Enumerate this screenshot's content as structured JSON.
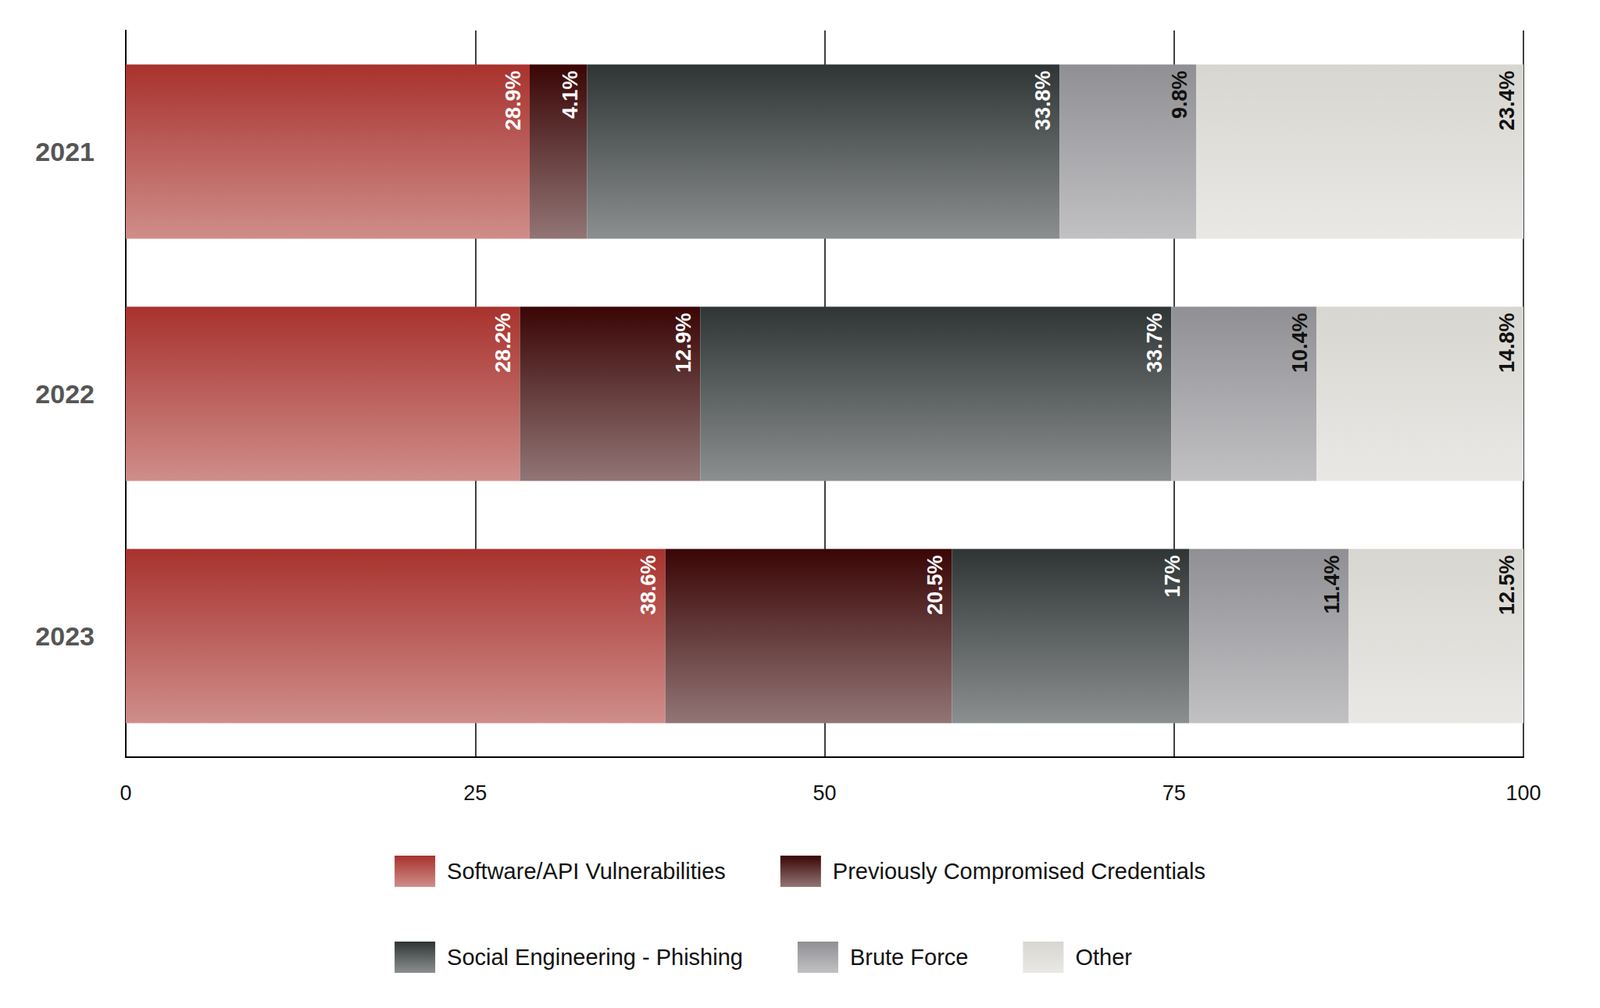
{
  "chart_data": {
    "type": "bar",
    "orientation": "horizontal",
    "stacked": true,
    "data_labels": true,
    "grid": true,
    "legend": "bottom",
    "categories": [
      "2021",
      "2022",
      "2023"
    ],
    "xlim": [
      0,
      100
    ],
    "xticks": [
      0,
      25,
      50,
      75,
      100
    ],
    "series": [
      {
        "name": "Software/API Vulnerabilities",
        "color": "#a8322d",
        "values": [
          28.9,
          28.2,
          38.6
        ],
        "value_labels": [
          "28.9%",
          "28.2%",
          "38.6%"
        ]
      },
      {
        "name": "Previously Compromised Credentials",
        "color": "#3a0505",
        "values": [
          4.1,
          12.9,
          20.5
        ],
        "value_labels": [
          "4.1%",
          "12.9%",
          "20.5%"
        ]
      },
      {
        "name": "Social Engineering - Phishing",
        "color": "#2f3535",
        "values": [
          33.8,
          33.7,
          17
        ],
        "value_labels": [
          "33.8%",
          "33.7%",
          "17%"
        ]
      },
      {
        "name": "Brute Force",
        "color": "#909094",
        "values": [
          9.8,
          10.4,
          11.4
        ],
        "value_labels": [
          "9.8%",
          "10.4%",
          "11.4%"
        ]
      },
      {
        "name": "Other",
        "color": "#d8d6d0",
        "values": [
          23.4,
          14.8,
          12.5
        ],
        "value_labels": [
          "23.4%",
          "14.8%",
          "12.5%"
        ]
      }
    ]
  }
}
